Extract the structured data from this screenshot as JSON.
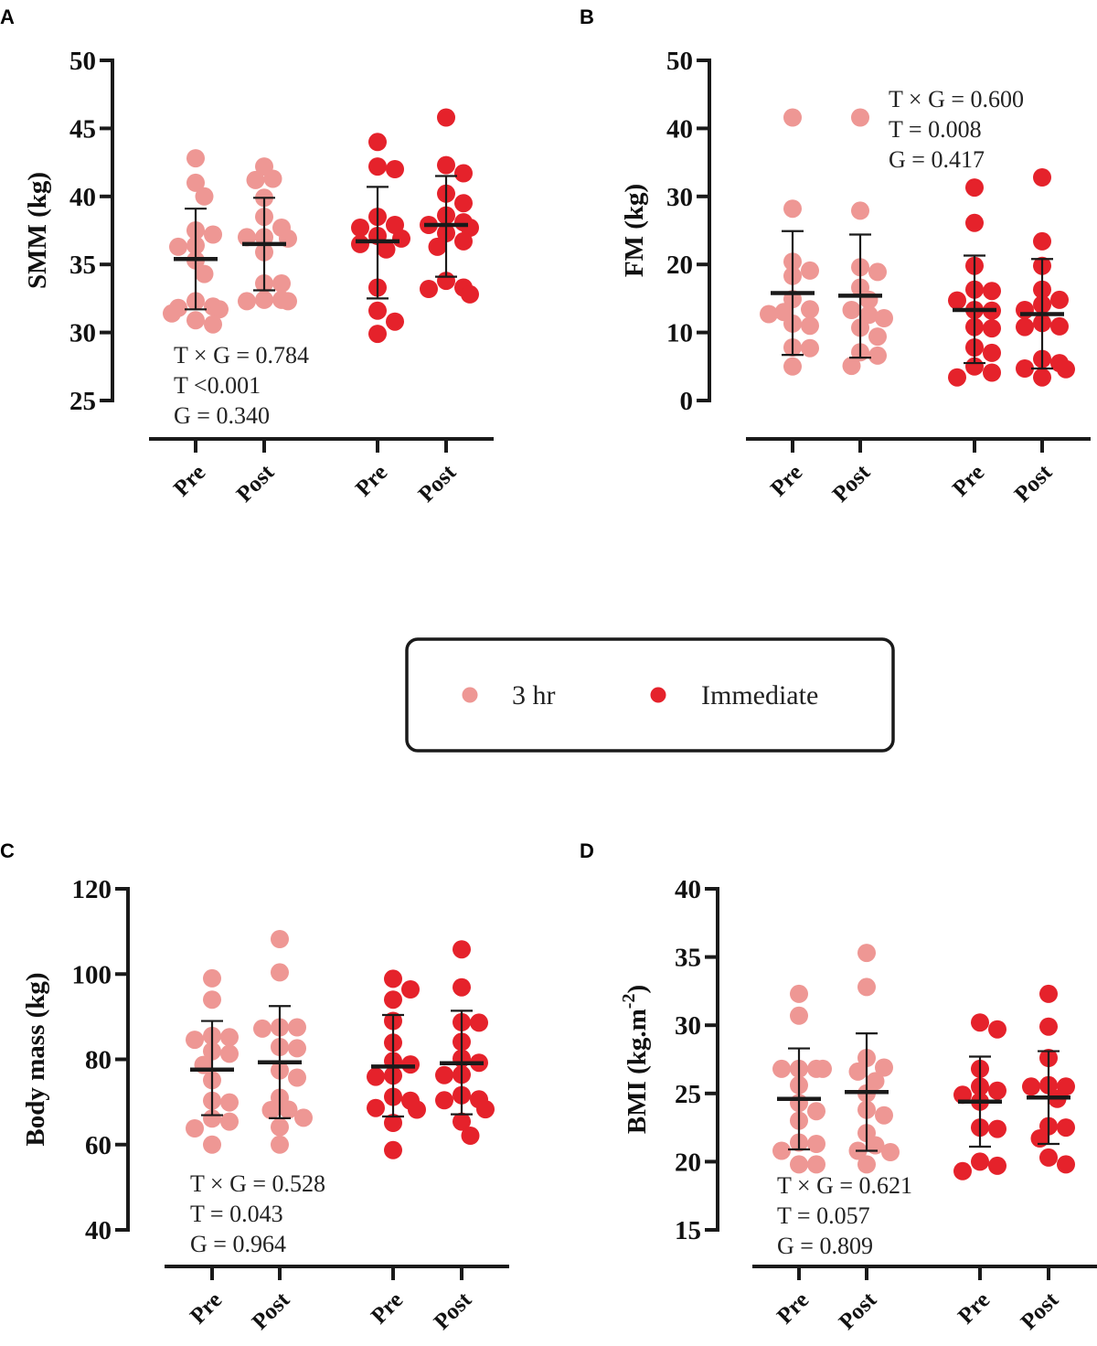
{
  "legend": {
    "items": [
      {
        "label": "3 hr",
        "color": "#EE9794"
      },
      {
        "label": "Immediate",
        "color": "#E5222B"
      }
    ]
  },
  "chart_data": [
    {
      "panel": "A",
      "type": "scatter",
      "ylabel": "SMM (kg)",
      "ylim": [
        25,
        50
      ],
      "yticks": [
        25,
        30,
        35,
        40,
        45,
        50
      ],
      "categories": [
        "Pre",
        "Post",
        "Pre",
        "Post"
      ],
      "stats": [
        "T × G = 0.784",
        "T <0.001",
        "G = 0.340"
      ],
      "stats_position": "bottom-left",
      "groups": [
        {
          "series": "3 hr",
          "label": "Pre",
          "mean": 35.4,
          "sd_low": 31.7,
          "sd_high": 39.1,
          "values": [
            42.8,
            41.0,
            40.0,
            37.5,
            37.2,
            36.4,
            36.3,
            35.3,
            34.3,
            32.3,
            31.9,
            31.8,
            31.7,
            31.4,
            30.9,
            30.6
          ]
        },
        {
          "series": "3 hr",
          "label": "Post",
          "mean": 36.5,
          "sd_low": 33.1,
          "sd_high": 39.9,
          "values": [
            42.2,
            41.3,
            41.2,
            39.9,
            38.5,
            37.7,
            37.0,
            37.0,
            36.9,
            35.9,
            33.6,
            33.6,
            32.4,
            32.4,
            32.3,
            32.3
          ]
        },
        {
          "series": "Immediate",
          "label": "Pre",
          "mean": 36.7,
          "sd_low": 32.5,
          "sd_high": 40.7,
          "values": [
            44.0,
            42.2,
            42.0,
            38.5,
            37.9,
            37.7,
            37.1,
            36.9,
            36.5,
            36.1,
            33.3,
            31.6,
            30.8,
            29.9
          ]
        },
        {
          "series": "Immediate",
          "label": "Post",
          "mean": 37.9,
          "sd_low": 34.1,
          "sd_high": 41.5,
          "values": [
            45.8,
            42.3,
            41.7,
            40.2,
            39.5,
            38.6,
            38.1,
            37.9,
            37.7,
            37.3,
            36.7,
            36.3,
            33.8,
            33.3,
            33.2,
            32.8
          ]
        }
      ]
    },
    {
      "panel": "B",
      "type": "scatter",
      "ylabel": "FM (kg)",
      "ylim": [
        0,
        50
      ],
      "yticks": [
        0,
        10,
        20,
        30,
        40,
        50
      ],
      "categories": [
        "Pre",
        "Post",
        "Pre",
        "Post"
      ],
      "stats": [
        "T × G = 0.600",
        "T = 0.008",
        "G = 0.417"
      ],
      "stats_position": "top-right",
      "groups": [
        {
          "series": "3 hr",
          "label": "Pre",
          "mean": 15.8,
          "sd_low": 6.7,
          "sd_high": 24.9,
          "values": [
            41.6,
            28.2,
            20.4,
            19.1,
            18.3,
            14.9,
            13.4,
            13.0,
            12.7,
            11.3,
            11.0,
            7.8,
            7.7,
            5.0
          ]
        },
        {
          "series": "3 hr",
          "label": "Post",
          "mean": 15.4,
          "sd_low": 6.3,
          "sd_high": 24.4,
          "values": [
            41.6,
            27.9,
            19.6,
            18.9,
            16.6,
            14.8,
            13.3,
            12.6,
            12.1,
            10.7,
            9.4,
            7.1,
            6.6,
            5.1
          ]
        },
        {
          "series": "Immediate",
          "label": "Pre",
          "mean": 13.3,
          "sd_low": 5.5,
          "sd_high": 21.3,
          "values": [
            31.3,
            26.1,
            19.8,
            16.3,
            16.1,
            14.7,
            13.3,
            13.2,
            10.8,
            10.6,
            7.8,
            7.0,
            5.0,
            4.1,
            3.4
          ]
        },
        {
          "series": "Immediate",
          "label": "Post",
          "mean": 12.7,
          "sd_low": 4.7,
          "sd_high": 20.8,
          "values": [
            32.8,
            23.4,
            19.8,
            16.3,
            14.8,
            14.1,
            13.3,
            11.4,
            10.9,
            10.8,
            6.1,
            5.5,
            4.7,
            4.6,
            3.4
          ]
        }
      ]
    },
    {
      "panel": "C",
      "type": "scatter",
      "ylabel": "Body mass (kg)",
      "ylim": [
        40,
        120
      ],
      "yticks": [
        40,
        60,
        80,
        100,
        120
      ],
      "categories": [
        "Pre",
        "Post",
        "Pre",
        "Post"
      ],
      "stats": [
        "T × G = 0.528",
        "T = 0.043",
        "G = 0.964"
      ],
      "stats_position": "bottom-left",
      "groups": [
        {
          "series": "3 hr",
          "label": "Pre",
          "mean": 77.6,
          "sd_low": 66.9,
          "sd_high": 89.0,
          "values": [
            99.0,
            94.0,
            85.5,
            85.2,
            84.6,
            81.9,
            81.3,
            78.7,
            75.1,
            70.3,
            69.9,
            66.1,
            65.4,
            63.8,
            60.0
          ]
        },
        {
          "series": "3 hr",
          "label": "Post",
          "mean": 79.3,
          "sd_low": 66.2,
          "sd_high": 92.5,
          "values": [
            108.2,
            100.4,
            87.5,
            87.5,
            87.2,
            82.9,
            82.6,
            77.4,
            75.7,
            71.0,
            68.2,
            68.1,
            66.3,
            64.1,
            60.0
          ]
        },
        {
          "series": "Immediate",
          "label": "Pre",
          "mean": 78.3,
          "sd_low": 66.6,
          "sd_high": 90.4,
          "values": [
            98.9,
            96.4,
            94.0,
            89.0,
            83.9,
            79.6,
            78.8,
            76.2,
            75.9,
            71.2,
            70.3,
            68.6,
            68.2,
            65.1,
            58.7
          ]
        },
        {
          "series": "Immediate",
          "label": "Post",
          "mean": 79.1,
          "sd_low": 67.1,
          "sd_high": 91.4,
          "values": [
            105.8,
            96.9,
            88.7,
            88.6,
            84.1,
            80.2,
            79.2,
            76.4,
            76.3,
            71.6,
            70.6,
            70.4,
            68.3,
            65.4,
            62.1
          ]
        }
      ]
    },
    {
      "panel": "D",
      "type": "scatter",
      "ylabel": "BMI (kg.m",
      "ylabel_superscript": "-2",
      "ylabel_suffix": ")",
      "ylim": [
        15,
        40
      ],
      "yticks": [
        15,
        20,
        25,
        30,
        35,
        40
      ],
      "categories": [
        "Pre",
        "Post",
        "Pre",
        "Post"
      ],
      "stats": [
        "T × G = 0.621",
        "T = 0.057",
        "G = 0.809"
      ],
      "stats_position": "bottom-left",
      "groups": [
        {
          "series": "3 hr",
          "label": "Pre",
          "mean": 24.6,
          "sd_low": 20.9,
          "sd_high": 28.3,
          "values": [
            32.3,
            30.7,
            26.8,
            26.8,
            26.8,
            26.8,
            25.6,
            24.3,
            23.7,
            23.0,
            21.4,
            21.3,
            20.8,
            19.8,
            19.8
          ]
        },
        {
          "series": "3 hr",
          "label": "Post",
          "mean": 25.1,
          "sd_low": 20.8,
          "sd_high": 29.4,
          "values": [
            35.3,
            32.8,
            27.6,
            26.9,
            26.6,
            25.9,
            25.0,
            23.8,
            23.4,
            22.1,
            21.2,
            20.8,
            20.7,
            19.8
          ]
        },
        {
          "series": "Immediate",
          "label": "Pre",
          "mean": 24.4,
          "sd_low": 21.1,
          "sd_high": 27.7,
          "values": [
            30.2,
            29.7,
            26.8,
            25.5,
            25.2,
            24.9,
            24.4,
            22.5,
            22.4,
            20.0,
            19.7,
            19.3
          ]
        },
        {
          "series": "Immediate",
          "label": "Post",
          "mean": 24.7,
          "sd_low": 21.3,
          "sd_high": 28.1,
          "values": [
            32.3,
            29.9,
            27.6,
            25.6,
            25.5,
            25.5,
            24.6,
            22.6,
            22.5,
            21.7,
            20.3,
            19.8
          ]
        }
      ]
    }
  ]
}
